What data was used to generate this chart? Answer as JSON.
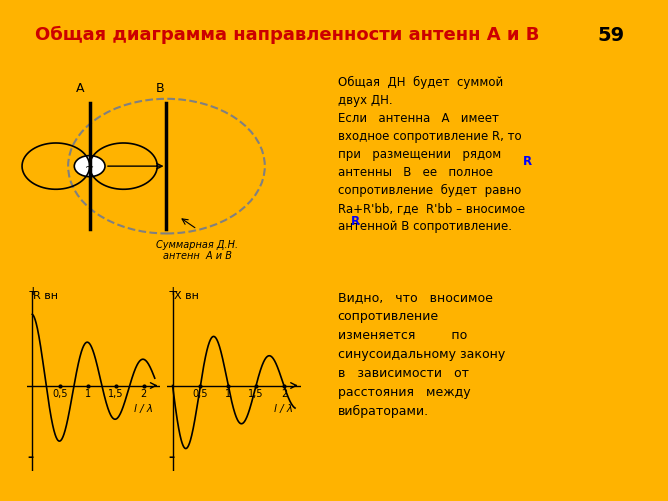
{
  "title": "Общая диаграмма направленности антенн А и В",
  "slide_number": "59",
  "title_bg": "#FFFF99",
  "title_color": "#CC0000",
  "slide_bg": "#FFB300",
  "content_bg": "#E8F4E8",
  "panel_bg": "#E0EEE0",
  "right_text_1": "Общая ДН будет суммой двух ДН.\nЕсли антенна А имеет входное сопротивление R, то при размещении рядом антенны В ее полное сопротивление будет равно Ra+R'bb, где R'bb – вносимое антенной В сопротивление.",
  "right_text_2": "Видно, что вносимое сопротивление изменяется по синусоидальному закону в зависимости от расстояния между вибраторами.",
  "caption": "Суммарная Д.Н.\nантенн  А и В",
  "ylabel_left": "R вн",
  "ylabel_right": "X вн",
  "xlabel": "l / λ",
  "tick_labels": [
    "0,5",
    "1",
    "1,5",
    "2"
  ]
}
